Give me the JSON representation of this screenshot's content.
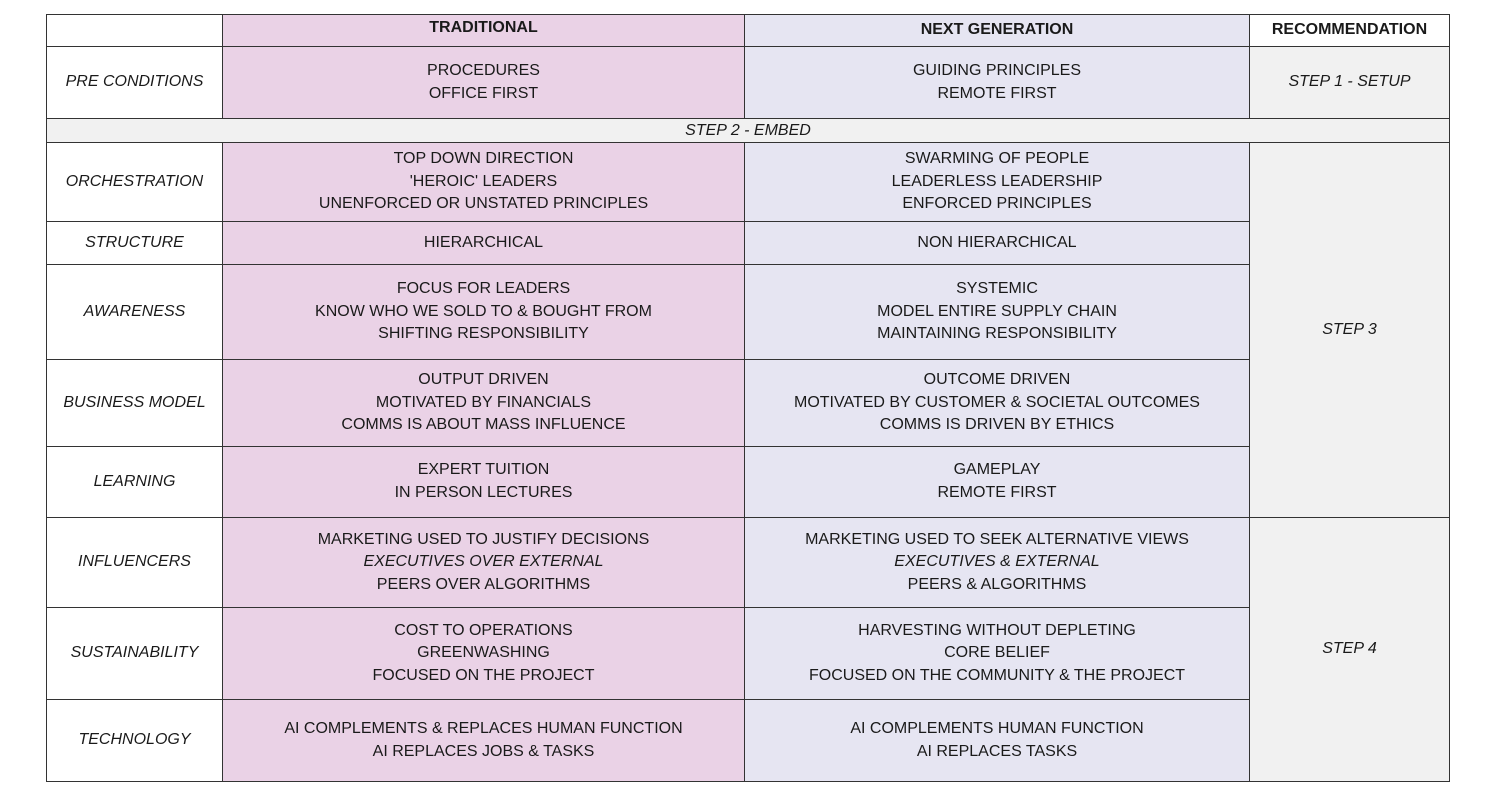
{
  "headers": {
    "traditional": "TRADITIONAL",
    "next_generation": "NEXT GENERATION",
    "recommendation": "RECOMMENDATION"
  },
  "embed_row": "STEP 2 - EMBED",
  "steps": {
    "step1": "STEP 1 - SETUP",
    "step3": "STEP 3",
    "step4": "STEP 4"
  },
  "rows": [
    {
      "label": "PRE CONDITIONS",
      "traditional": [
        {
          "text": "PROCEDURES"
        },
        {
          "text": "OFFICE FIRST"
        }
      ],
      "next": [
        {
          "text": "GUIDING PRINCIPLES"
        },
        {
          "text": "REMOTE FIRST"
        }
      ]
    },
    {
      "label": "ORCHESTRATION",
      "traditional": [
        {
          "text": "TOP DOWN DIRECTION"
        },
        {
          "text": "'HEROIC' LEADERS"
        },
        {
          "text": "UNENFORCED OR UNSTATED PRINCIPLES"
        }
      ],
      "next": [
        {
          "text": "SWARMING OF PEOPLE"
        },
        {
          "text": "LEADERLESS LEADERSHIP"
        },
        {
          "text": "ENFORCED PRINCIPLES"
        }
      ]
    },
    {
      "label": "STRUCTURE",
      "traditional": [
        {
          "text": "HIERARCHICAL"
        }
      ],
      "next": [
        {
          "text": "NON HIERARCHICAL"
        }
      ]
    },
    {
      "label": "AWARENESS",
      "traditional": [
        {
          "text": "FOCUS FOR LEADERS"
        },
        {
          "text": "KNOW WHO WE SOLD TO & BOUGHT FROM"
        },
        {
          "text": "SHIFTING RESPONSIBILITY"
        }
      ],
      "next": [
        {
          "text": "SYSTEMIC"
        },
        {
          "text": "MODEL ENTIRE SUPPLY CHAIN"
        },
        {
          "text": "MAINTAINING RESPONSIBILITY"
        }
      ]
    },
    {
      "label": "BUSINESS MODEL",
      "traditional": [
        {
          "text": "OUTPUT DRIVEN"
        },
        {
          "text": "MOTIVATED BY FINANCIALS"
        },
        {
          "text": "COMMS IS ABOUT MASS INFLUENCE"
        }
      ],
      "next": [
        {
          "text": "OUTCOME DRIVEN"
        },
        {
          "text": "MOTIVATED BY CUSTOMER & SOCIETAL OUTCOMES"
        },
        {
          "text": "COMMS IS DRIVEN BY ETHICS"
        }
      ]
    },
    {
      "label": "LEARNING",
      "traditional": [
        {
          "text": "EXPERT TUITION"
        },
        {
          "text": "IN PERSON LECTURES"
        }
      ],
      "next": [
        {
          "text": "GAMEPLAY"
        },
        {
          "text": "REMOTE FIRST"
        }
      ]
    },
    {
      "label": "INFLUENCERS",
      "traditional": [
        {
          "text": "MARKETING USED TO JUSTIFY DECISIONS"
        },
        {
          "text": "EXECUTIVES OVER EXTERNAL",
          "italic": true
        },
        {
          "text": "PEERS OVER ALGORITHMS"
        }
      ],
      "next": [
        {
          "text": "MARKETING USED TO SEEK ALTERNATIVE VIEWS"
        },
        {
          "text": "EXECUTIVES & EXTERNAL",
          "italic": true
        },
        {
          "text": "PEERS & ALGORITHMS"
        }
      ]
    },
    {
      "label": "SUSTAINABILITY",
      "traditional": [
        {
          "text": "COST TO OPERATIONS"
        },
        {
          "text": "GREENWASHING"
        },
        {
          "text": "FOCUSED ON THE PROJECT"
        }
      ],
      "next": [
        {
          "text": "HARVESTING WITHOUT DEPLETING"
        },
        {
          "text": "CORE BELIEF"
        },
        {
          "text": "FOCUSED ON THE COMMUNITY & THE PROJECT"
        }
      ]
    },
    {
      "label": "TECHNOLOGY",
      "traditional": [
        {
          "text": "AI COMPLEMENTS & REPLACES HUMAN FUNCTION"
        },
        {
          "text": "AI REPLACES JOBS & TASKS"
        }
      ],
      "next": [
        {
          "text": "AI COMPLEMENTS HUMAN FUNCTION"
        },
        {
          "text": "AI REPLACES TASKS"
        }
      ]
    }
  ]
}
